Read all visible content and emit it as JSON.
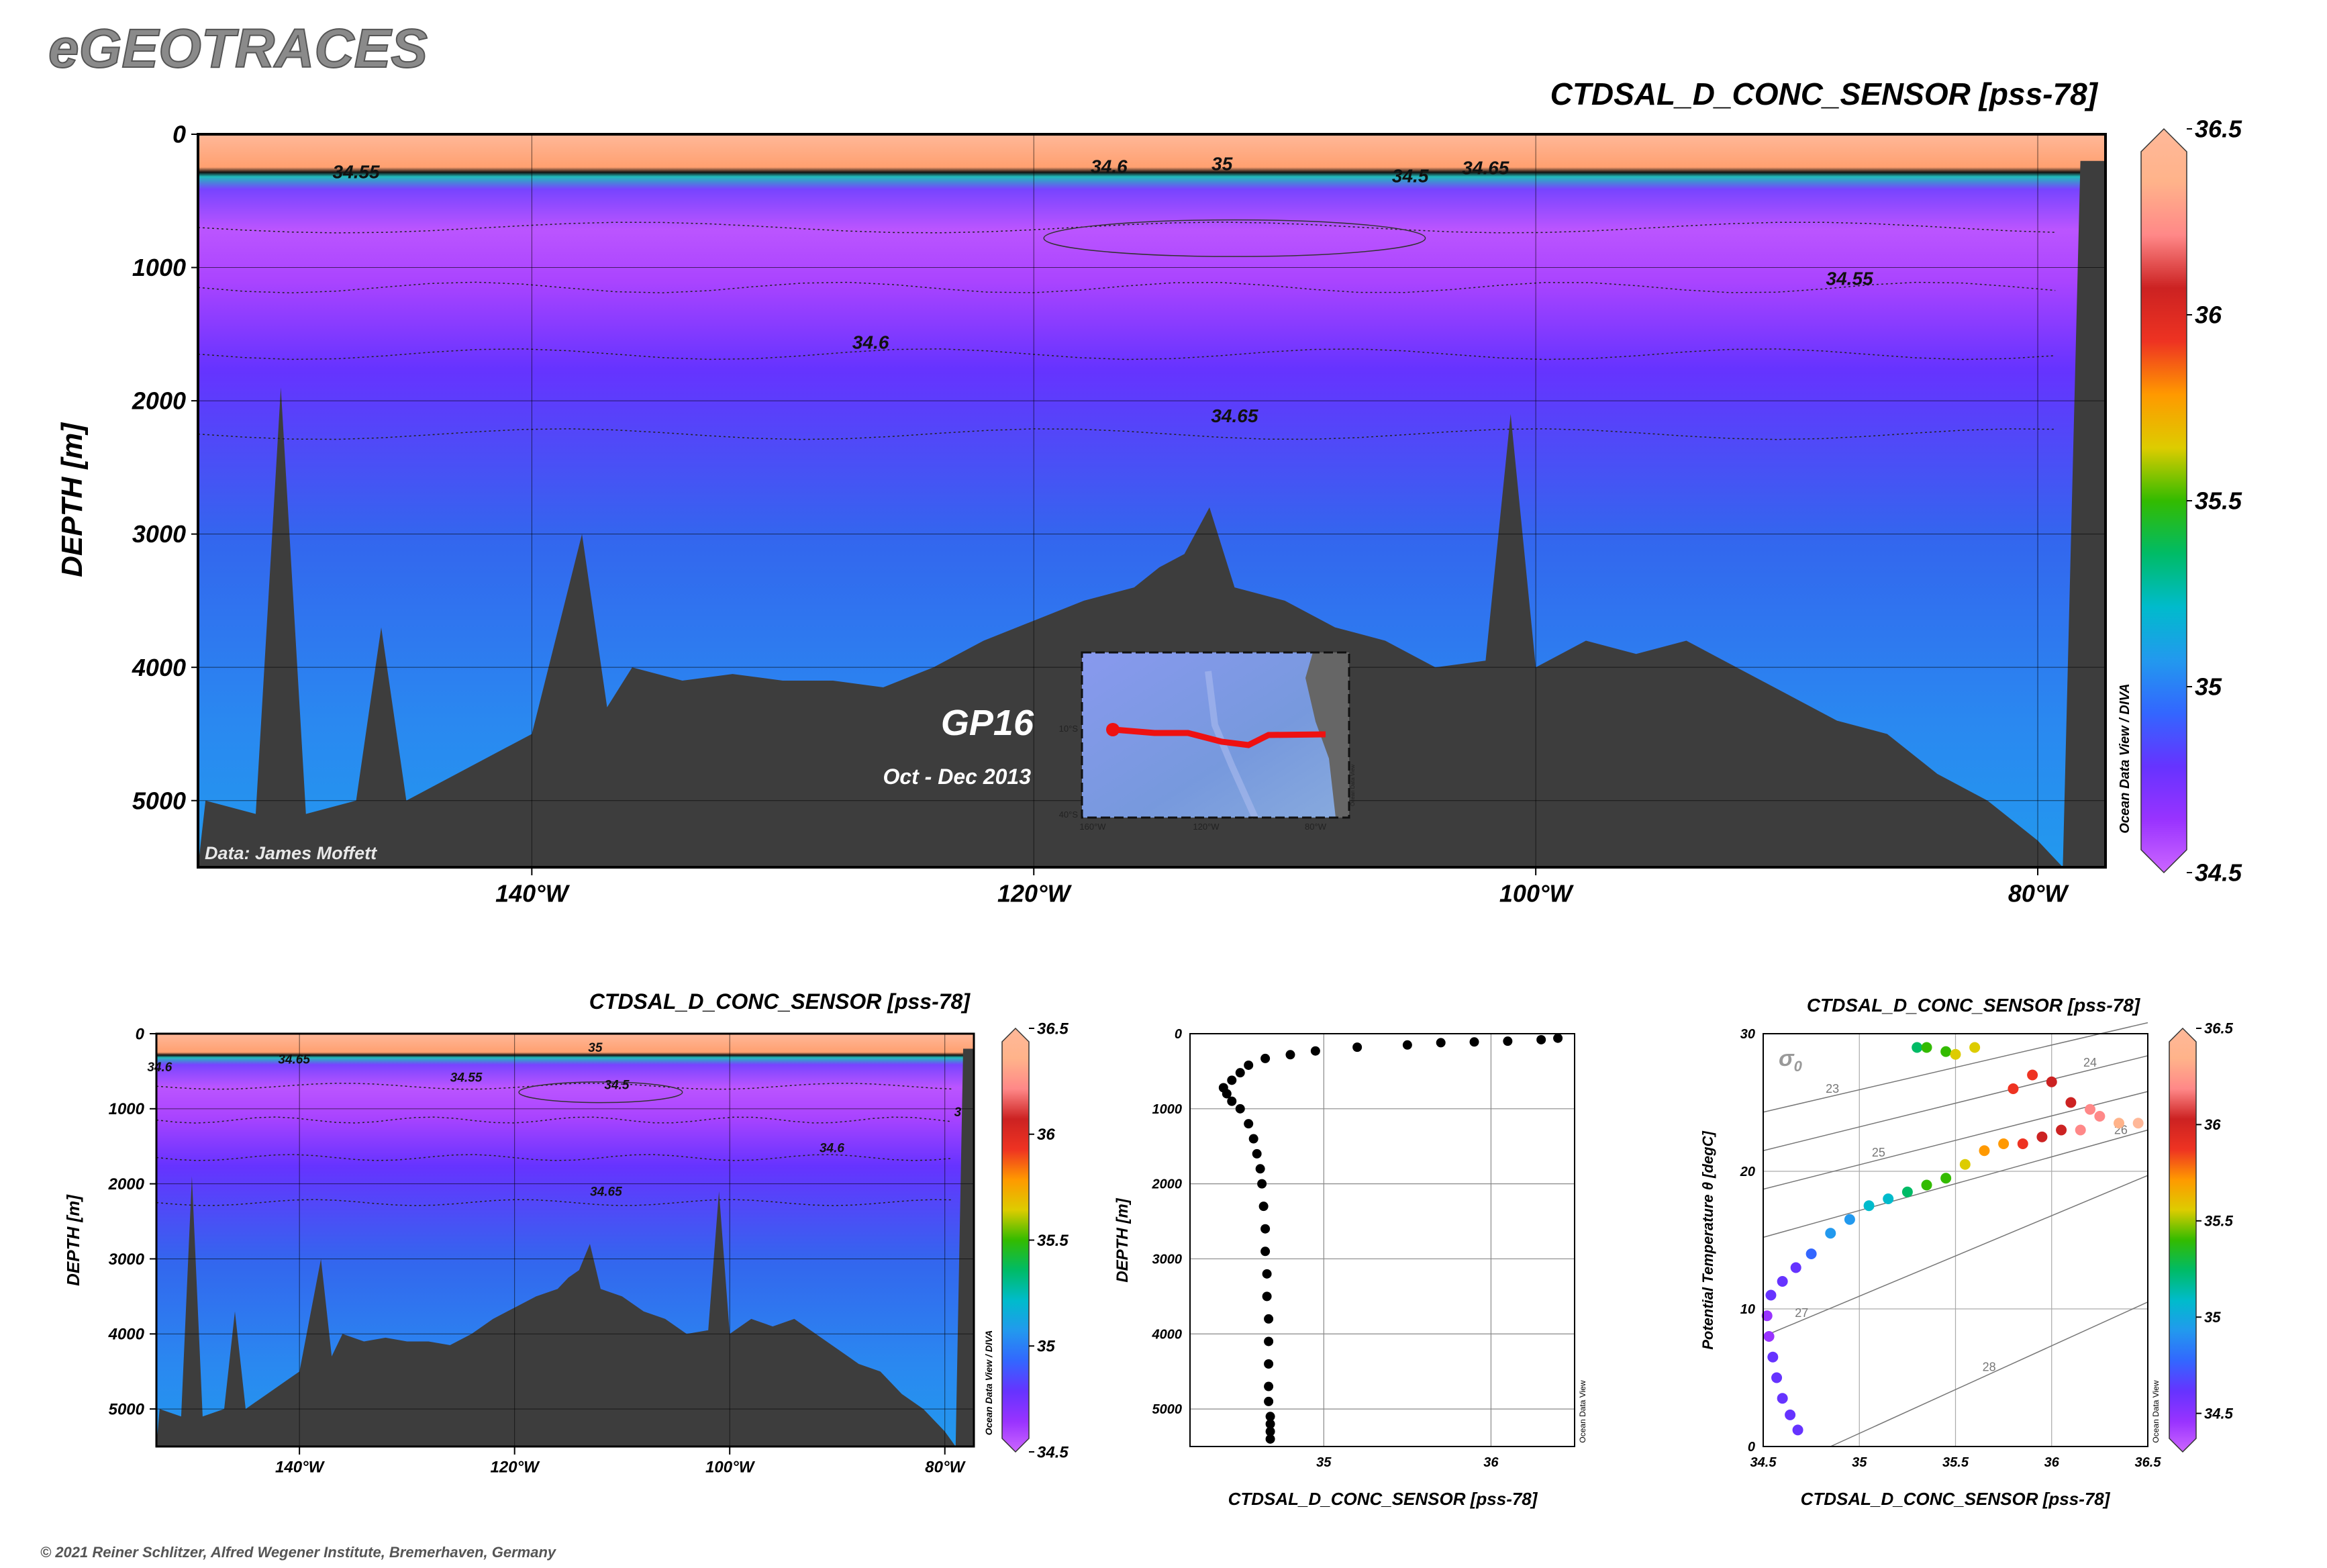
{
  "brand": "eGEOTRACES",
  "copyright": "© 2021 Reiner Schlitzer, Alfred Wegener Institute, Bremerhaven, Germany",
  "colors": {
    "scale": [
      "#cc66ff",
      "#9933ff",
      "#6633ff",
      "#3366ff",
      "#2299ee",
      "#00bbcc",
      "#00bb66",
      "#33bb00",
      "#ddcc00",
      "#ff9900",
      "#ee3322",
      "#cc2222",
      "#ff8888",
      "#ffb38a",
      "#ffb899"
    ],
    "seafloor": "#3d3d3d",
    "track": "#ee1111"
  },
  "main": {
    "title": "CTDSAL_D_CONC_SENSOR [pss-78]",
    "ylabel": "DEPTH [m]",
    "credit": "Data: James Moffett",
    "section_name": "GP16",
    "cruise_dates": "Oct - Dec 2013",
    "watermark": "Ocean Data View / DIVA",
    "contour_labels": [
      "34.55",
      "34.6",
      "35",
      "34.65",
      "34.5",
      "34.55",
      "34.6",
      "34.65"
    ]
  },
  "inset_map": {
    "ticks": [
      "10°S",
      "40°S",
      "160°W",
      "120°W",
      "80°W"
    ],
    "watermark": "Ocean Data View"
  },
  "small_section": {
    "title": "CTDSAL_D_CONC_SENSOR [pss-78]",
    "ylabel": "DEPTH [m]",
    "watermark": "Ocean Data View / DIVA",
    "contour_labels": [
      "34.6",
      "34.65",
      "35",
      "34.55",
      "34.5",
      "34.6",
      "34.65",
      "3"
    ]
  },
  "profile_watermark": "Ocean Data View",
  "ts_watermark": "Ocean Data View",
  "chart_data": [
    {
      "type": "heatmap",
      "title": "CTDSAL_D_CONC_SENSOR [pss-78]",
      "xlabel": "",
      "ylabel": "DEPTH [m]",
      "x_ticks": [
        "140°W",
        "120°W",
        "100°W",
        "80°W"
      ],
      "x_tick_values": [
        -140,
        -120,
        -100,
        -80
      ],
      "xlim": [
        -153.3,
        -77.3
      ],
      "y_ticks": [
        "0",
        "1000",
        "2000",
        "3000",
        "4000",
        "5000"
      ],
      "ylim": [
        0,
        5500
      ],
      "colorbar": {
        "ticks": [
          "36.5",
          "36",
          "35.5",
          "35",
          "34.5"
        ],
        "range": [
          34.5,
          36.5
        ]
      },
      "salinity_layers": [
        {
          "depth_top": 0,
          "depth_bottom": 300,
          "salinity": 36.2
        },
        {
          "depth_top": 300,
          "depth_bottom": 700,
          "salinity": 34.55
        },
        {
          "depth_top": 700,
          "depth_bottom": 1000,
          "salinity": 34.52
        },
        {
          "depth_top": 1000,
          "depth_bottom": 2000,
          "salinity": 34.6
        },
        {
          "depth_top": 2000,
          "depth_bottom": 5500,
          "salinity": 34.66
        }
      ],
      "seafloor_depth": {
        "lon": [
          -153,
          -151,
          -150,
          -149,
          -147,
          -146,
          -145,
          -143,
          -141,
          -140,
          -138,
          -137,
          -136,
          -134,
          -132,
          -130,
          -128,
          -126,
          -124,
          -122,
          -120,
          -118,
          -116,
          -115,
          -114,
          -113,
          -112,
          -110,
          -108,
          -106,
          -104,
          -102,
          -101,
          -100,
          -98,
          -96,
          -94,
          -92,
          -90,
          -88,
          -86,
          -84,
          -82,
          -80,
          -79,
          -78.3,
          -77.3
        ],
        "depth": [
          5000,
          5100,
          1900,
          5100,
          5000,
          3700,
          5000,
          4800,
          4600,
          4500,
          3000,
          4300,
          4000,
          4100,
          4050,
          4100,
          4100,
          4150,
          4000,
          3800,
          3650,
          3500,
          3400,
          3250,
          3150,
          2800,
          3400,
          3500,
          3700,
          3800,
          4000,
          3950,
          2100,
          4000,
          3800,
          3900,
          3800,
          4000,
          4200,
          4400,
          4500,
          4800,
          5000,
          5300,
          5500,
          200,
          200
        ]
      }
    },
    {
      "type": "heatmap",
      "title": "CTDSAL_D_CONC_SENSOR [pss-78]",
      "xlabel": "",
      "ylabel": "DEPTH [m]",
      "x_ticks": [
        "140°W",
        "120°W",
        "100°W",
        "80°W"
      ],
      "x_tick_values": [
        -140,
        -120,
        -100,
        -80
      ],
      "xlim": [
        -153.3,
        -77.3
      ],
      "y_ticks": [
        "0",
        "1000",
        "2000",
        "3000",
        "4000",
        "5000"
      ],
      "ylim": [
        0,
        5500
      ],
      "colorbar": {
        "ticks": [
          "36.5",
          "36",
          "35.5",
          "35",
          "34.5"
        ],
        "range": [
          34.5,
          36.5
        ]
      }
    },
    {
      "type": "scatter",
      "title": "",
      "xlabel": "CTDSAL_D_CONC_SENSOR [pss-78]",
      "ylabel": "DEPTH [m]",
      "x_ticks": [
        "35",
        "36"
      ],
      "x_tick_values": [
        35,
        36
      ],
      "xlim": [
        34.2,
        36.5
      ],
      "y_ticks": [
        "0",
        "1000",
        "2000",
        "3000",
        "4000",
        "5000"
      ],
      "ylim": [
        0,
        5500
      ],
      "grid": true,
      "x": [
        36.4,
        36.3,
        36.1,
        35.9,
        35.7,
        35.5,
        35.2,
        34.95,
        34.8,
        34.65,
        34.55,
        34.5,
        34.45,
        34.4,
        34.42,
        34.45,
        34.5,
        34.55,
        34.58,
        34.6,
        34.62,
        34.63,
        34.64,
        34.65,
        34.65,
        34.66,
        34.66,
        34.67,
        34.67,
        34.67,
        34.67,
        34.67,
        34.68,
        34.68,
        34.68,
        34.68
      ],
      "y": [
        60,
        80,
        100,
        110,
        120,
        150,
        180,
        230,
        280,
        330,
        420,
        520,
        620,
        720,
        800,
        900,
        1000,
        1200,
        1400,
        1600,
        1800,
        2000,
        2300,
        2600,
        2900,
        3200,
        3500,
        3800,
        4100,
        4400,
        4700,
        4900,
        5100,
        5200,
        5300,
        5400
      ]
    },
    {
      "type": "scatter",
      "title": "CTDSAL_D_CONC_SENSOR [pss-78]",
      "xlabel": "CTDSAL_D_CONC_SENSOR [pss-78]",
      "ylabel": "Potential Temperature θ [degC]",
      "x_ticks": [
        "34.5",
        "35",
        "35.5",
        "36",
        "36.5"
      ],
      "x_tick_values": [
        34.5,
        35,
        35.5,
        36,
        36.5
      ],
      "xlim": [
        34.5,
        36.5
      ],
      "y_ticks": [
        "0",
        "10",
        "20",
        "30"
      ],
      "y_tick_values": [
        0,
        10,
        20,
        30
      ],
      "ylim": [
        0,
        30
      ],
      "grid": true,
      "isopycnal_label": "σ",
      "isopycnal_label_sub": "0",
      "isopycnals": [
        {
          "label": "23",
          "s": [
            34.5,
            36.5
          ],
          "t": [
            24.3,
            30.8
          ]
        },
        {
          "label": "24",
          "s": [
            34.5,
            36.5
          ],
          "t": [
            21.5,
            28.4
          ]
        },
        {
          "label": "25",
          "s": [
            34.5,
            36.5
          ],
          "t": [
            18.7,
            25.8
          ]
        },
        {
          "label": "26",
          "s": [
            34.5,
            36.5
          ],
          "t": [
            15.2,
            23.0
          ]
        },
        {
          "label": "27",
          "s": [
            34.5,
            36.5
          ],
          "t": [
            8.0,
            19.7
          ]
        },
        {
          "label": "28",
          "s": [
            34.85,
            36.5
          ],
          "t": [
            0,
            10.5
          ]
        }
      ],
      "colorbar": {
        "ticks": [
          "36.5",
          "36",
          "35.5",
          "35",
          "34.5"
        ],
        "range": [
          34.3,
          36.5
        ]
      },
      "x": [
        34.68,
        34.64,
        34.6,
        34.57,
        34.55,
        34.53,
        34.52,
        34.54,
        34.6,
        34.67,
        34.75,
        34.85,
        34.95,
        35.05,
        35.15,
        35.25,
        35.35,
        35.45,
        35.55,
        35.65,
        35.75,
        35.85,
        35.95,
        36.05,
        36.15,
        36.25,
        36.35,
        36.45,
        35.8,
        35.9,
        36.0,
        36.1,
        36.2,
        35.3,
        35.35,
        35.45,
        35.5,
        35.6
      ],
      "y": [
        1.2,
        2.3,
        3.5,
        5.0,
        6.5,
        8.0,
        9.5,
        11.0,
        12.0,
        13.0,
        14.0,
        15.5,
        16.5,
        17.5,
        18.0,
        18.5,
        19.0,
        19.5,
        20.5,
        21.5,
        22.0,
        22.0,
        22.5,
        23.0,
        23.0,
        24.0,
        23.5,
        23.5,
        26.0,
        27.0,
        26.5,
        25.0,
        24.5,
        29.0,
        29.0,
        28.7,
        28.5,
        29.0
      ]
    }
  ]
}
